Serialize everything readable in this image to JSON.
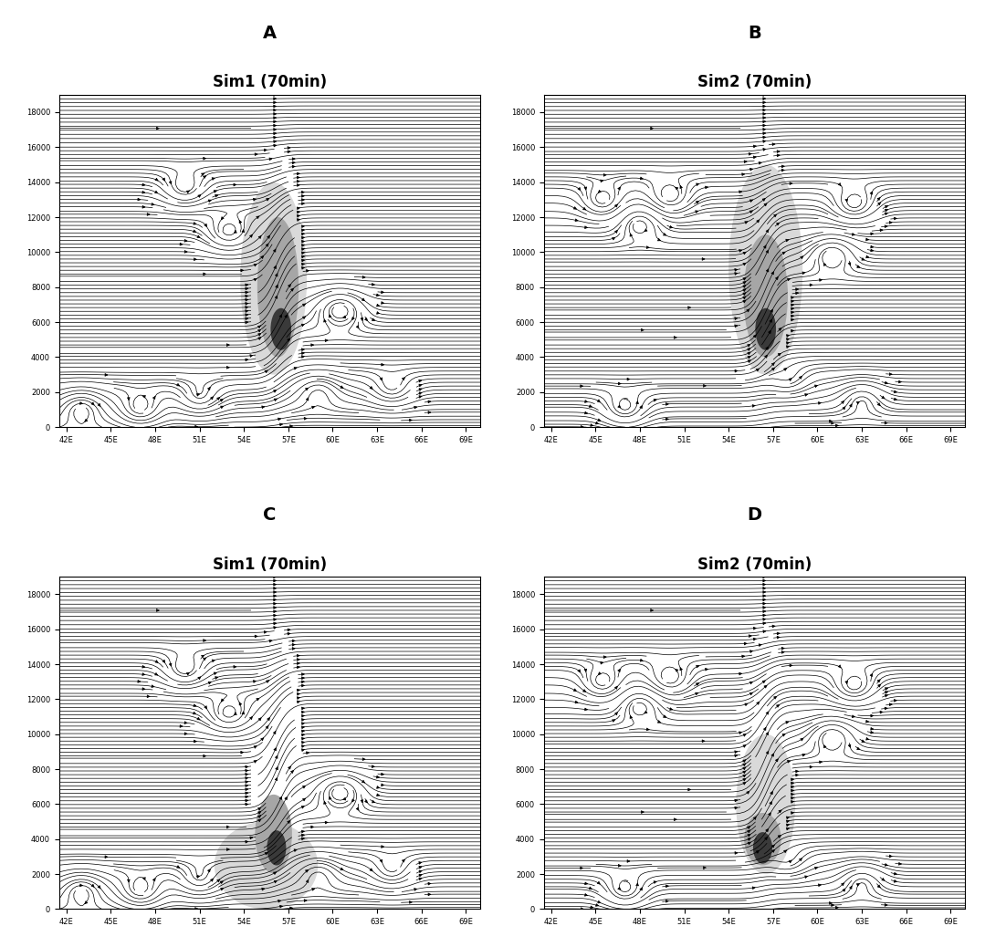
{
  "chart_data": [
    {
      "type": "streamline",
      "panel": "A",
      "title": "Sim1 (70min)",
      "xlim": [
        41.5,
        70
      ],
      "ylim": [
        0,
        19000
      ],
      "xticks": [
        {
          "value": 42,
          "label": "42E"
        },
        {
          "value": 45,
          "label": "45E"
        },
        {
          "value": 48,
          "label": "48E"
        },
        {
          "value": 51,
          "label": "51E"
        },
        {
          "value": 54,
          "label": "54E"
        },
        {
          "value": 57,
          "label": "57E"
        },
        {
          "value": 60,
          "label": "60E"
        },
        {
          "value": 63,
          "label": "63E"
        },
        {
          "value": 66,
          "label": "66E"
        },
        {
          "value": 69,
          "label": "69E"
        }
      ],
      "yticks": [
        0,
        2000,
        4000,
        6000,
        8000,
        10000,
        12000,
        14000,
        16000,
        18000
      ],
      "shading": [
        {
          "x": 56,
          "y": 8500,
          "width": 4.5,
          "height": 11000,
          "level": 1
        },
        {
          "x": 56.3,
          "y": 8000,
          "width": 2.8,
          "height": 8000,
          "level": 2
        },
        {
          "x": 56.5,
          "y": 5600,
          "width": 1.4,
          "height": 2400,
          "level": 3
        }
      ],
      "vortices": [
        {
          "x": 60.5,
          "y": 6800,
          "strength": -1.5
        },
        {
          "x": 53,
          "y": 11000,
          "strength": 1.0
        },
        {
          "x": 47,
          "y": 900,
          "strength": 0.8
        },
        {
          "x": 43,
          "y": 1200,
          "strength": -0.8
        },
        {
          "x": 51,
          "y": 1500,
          "strength": 0.6
        },
        {
          "x": 59,
          "y": 2200,
          "strength": -0.6
        },
        {
          "x": 64,
          "y": 2000,
          "strength": 0.6
        },
        {
          "x": 50,
          "y": 13500,
          "strength": 0.8
        }
      ],
      "updraft": {
        "x": 56.3,
        "y": 8000,
        "strength": 3
      }
    },
    {
      "type": "streamline",
      "panel": "B",
      "title": "Sim2 (70min)",
      "xlim": [
        41.5,
        70
      ],
      "ylim": [
        0,
        19000
      ],
      "xticks": [
        {
          "value": 42,
          "label": "42E"
        },
        {
          "value": 45,
          "label": "45E"
        },
        {
          "value": 48,
          "label": "48E"
        },
        {
          "value": 51,
          "label": "51E"
        },
        {
          "value": 54,
          "label": "54E"
        },
        {
          "value": 57,
          "label": "57E"
        },
        {
          "value": 60,
          "label": "60E"
        },
        {
          "value": 63,
          "label": "63E"
        },
        {
          "value": 66,
          "label": "66E"
        },
        {
          "value": 69,
          "label": "69E"
        }
      ],
      "yticks": [
        0,
        2000,
        4000,
        6000,
        8000,
        10000,
        12000,
        14000,
        16000,
        18000
      ],
      "shading": [
        {
          "x": 56.5,
          "y": 9000,
          "width": 5,
          "height": 12000,
          "level": 1
        },
        {
          "x": 56.5,
          "y": 7500,
          "width": 3,
          "height": 7000,
          "level": 2
        },
        {
          "x": 56.5,
          "y": 5600,
          "width": 1.4,
          "height": 2400,
          "level": 3
        }
      ],
      "vortices": [
        {
          "x": 45.5,
          "y": 12800,
          "strength": 1.0
        },
        {
          "x": 48,
          "y": 11800,
          "strength": -1.0
        },
        {
          "x": 50,
          "y": 13000,
          "strength": 1.0
        },
        {
          "x": 61,
          "y": 10000,
          "strength": -1.0
        },
        {
          "x": 62.5,
          "y": 12600,
          "strength": 1.0
        },
        {
          "x": 47,
          "y": 900,
          "strength": 0.8
        },
        {
          "x": 63,
          "y": 1800,
          "strength": -0.6
        },
        {
          "x": 58,
          "y": 2500,
          "strength": 0.5
        }
      ],
      "updraft": {
        "x": 56.5,
        "y": 8000,
        "strength": 3
      }
    },
    {
      "type": "streamline",
      "panel": "C",
      "title": "Sim1 (70min)",
      "xlim": [
        41.5,
        70
      ],
      "ylim": [
        0,
        19000
      ],
      "xticks": [
        {
          "value": 42,
          "label": "42E"
        },
        {
          "value": 45,
          "label": "45E"
        },
        {
          "value": 48,
          "label": "48E"
        },
        {
          "value": 51,
          "label": "51E"
        },
        {
          "value": 54,
          "label": "54E"
        },
        {
          "value": 57,
          "label": "57E"
        },
        {
          "value": 60,
          "label": "60E"
        },
        {
          "value": 63,
          "label": "63E"
        },
        {
          "value": 66,
          "label": "66E"
        },
        {
          "value": 69,
          "label": "69E"
        }
      ],
      "yticks": [
        0,
        2000,
        4000,
        6000,
        8000,
        10000,
        12000,
        14000,
        16000,
        18000
      ],
      "shading": [
        {
          "x": 55.5,
          "y": 2500,
          "width": 7,
          "height": 5000,
          "level": 1
        },
        {
          "x": 56,
          "y": 4300,
          "width": 2.5,
          "height": 4500,
          "level": 2
        },
        {
          "x": 56.2,
          "y": 3500,
          "width": 1.3,
          "height": 2000,
          "level": 3
        }
      ],
      "vortices": [
        {
          "x": 60.5,
          "y": 6800,
          "strength": -1.5
        },
        {
          "x": 53,
          "y": 11000,
          "strength": 1.0
        },
        {
          "x": 47,
          "y": 900,
          "strength": 0.8
        },
        {
          "x": 43,
          "y": 1200,
          "strength": -0.8
        },
        {
          "x": 51,
          "y": 1500,
          "strength": 0.6
        },
        {
          "x": 59,
          "y": 2200,
          "strength": -0.6
        },
        {
          "x": 64,
          "y": 2000,
          "strength": 0.6
        },
        {
          "x": 50,
          "y": 13500,
          "strength": 0.8
        }
      ],
      "updraft": {
        "x": 56.3,
        "y": 8000,
        "strength": 3
      }
    },
    {
      "type": "streamline",
      "panel": "D",
      "title": "Sim2 (70min)",
      "xlim": [
        41.5,
        70
      ],
      "ylim": [
        0,
        19000
      ],
      "xticks": [
        {
          "value": 42,
          "label": "42E"
        },
        {
          "value": 45,
          "label": "45E"
        },
        {
          "value": 48,
          "label": "48E"
        },
        {
          "value": 51,
          "label": "51E"
        },
        {
          "value": 54,
          "label": "54E"
        },
        {
          "value": 57,
          "label": "57E"
        },
        {
          "value": 60,
          "label": "60E"
        },
        {
          "value": 63,
          "label": "63E"
        },
        {
          "value": 66,
          "label": "66E"
        },
        {
          "value": 69,
          "label": "69E"
        }
      ],
      "yticks": [
        0,
        2000,
        4000,
        6000,
        8000,
        10000,
        12000,
        14000,
        16000,
        18000
      ],
      "shading": [
        {
          "x": 56.5,
          "y": 6000,
          "width": 4,
          "height": 8000,
          "level": 1
        },
        {
          "x": 56.3,
          "y": 4000,
          "width": 2.5,
          "height": 3000,
          "level": 2
        },
        {
          "x": 56.3,
          "y": 3500,
          "width": 1.3,
          "height": 1800,
          "level": 3
        }
      ],
      "vortices": [
        {
          "x": 45.5,
          "y": 12800,
          "strength": 1.0
        },
        {
          "x": 48,
          "y": 11800,
          "strength": -1.0
        },
        {
          "x": 50,
          "y": 13000,
          "strength": 1.0
        },
        {
          "x": 61,
          "y": 10000,
          "strength": -1.0
        },
        {
          "x": 62.5,
          "y": 12600,
          "strength": 1.0
        },
        {
          "x": 47,
          "y": 900,
          "strength": 0.8
        },
        {
          "x": 63,
          "y": 1800,
          "strength": -0.6
        },
        {
          "x": 58,
          "y": 2500,
          "strength": 0.5
        }
      ],
      "updraft": {
        "x": 56.5,
        "y": 8000,
        "strength": 3
      }
    }
  ]
}
